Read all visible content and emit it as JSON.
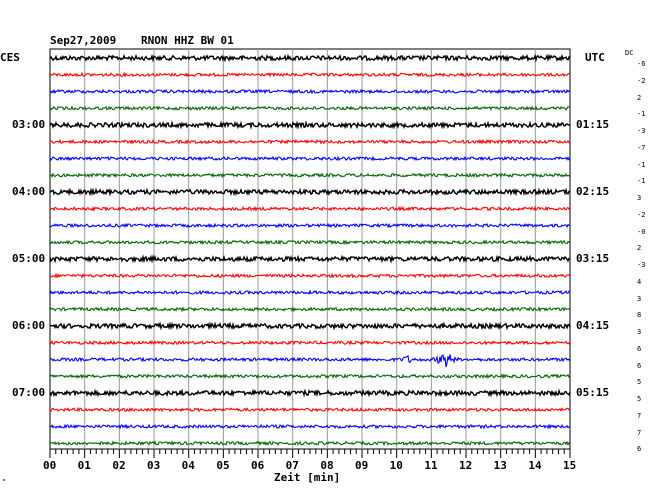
{
  "header": {
    "date": "Sep27,2009",
    "station": "RNON HHZ BW 01",
    "left_zone": "CES",
    "right_zone": "UTC",
    "dc_label": "DC",
    "x_axis_label": "Zeit [min]",
    "corner_mark": "\""
  },
  "chart_data": {
    "type": "seismogram helicorder",
    "xlabel": "Zeit [min]",
    "xlim": [
      0,
      15
    ],
    "x_ticks": [
      "00",
      "01",
      "02",
      "03",
      "04",
      "05",
      "06",
      "07",
      "08",
      "09",
      "10",
      "11",
      "12",
      "13",
      "14",
      "15"
    ],
    "rows_per_hour": 4,
    "row_colors": [
      "#000000",
      "#ff0000",
      "#0000ff",
      "#006600"
    ],
    "left_time_labels": [
      {
        "row": 4,
        "text": "03:00"
      },
      {
        "row": 8,
        "text": "04:00"
      },
      {
        "row": 12,
        "text": "05:00"
      },
      {
        "row": 16,
        "text": "06:00"
      },
      {
        "row": 20,
        "text": "07:00"
      }
    ],
    "right_time_labels": [
      {
        "row": 4,
        "text": "01:15"
      },
      {
        "row": 8,
        "text": "02:15"
      },
      {
        "row": 12,
        "text": "03:15"
      },
      {
        "row": 16,
        "text": "04:15"
      },
      {
        "row": 20,
        "text": "05:15"
      }
    ],
    "dc_offsets": [
      "-6",
      "-2",
      "2",
      "-1",
      "-3",
      "-7",
      "-1",
      "-1",
      "3",
      "-2",
      "-0",
      "2",
      "-3",
      "4",
      "3",
      "8",
      "3",
      "6",
      "6",
      "5",
      "5",
      "7",
      "7",
      "6"
    ],
    "events": [
      {
        "row": 18,
        "minute": 10.3,
        "label": "small event"
      },
      {
        "row": 18,
        "minute": 11.4,
        "label": "larger event"
      }
    ]
  }
}
